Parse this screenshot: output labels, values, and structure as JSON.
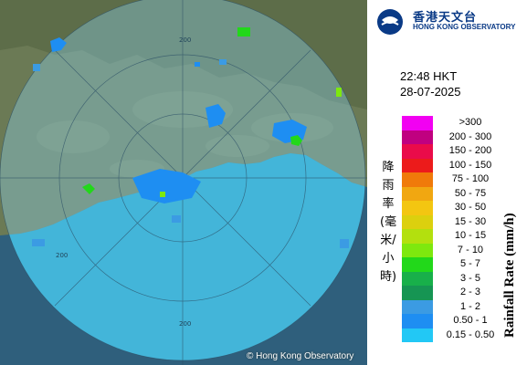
{
  "logo": {
    "name_cn": "香港天文台",
    "name_en": "HONG KONG OBSERVATORY"
  },
  "header": {
    "time": "22:48 HKT",
    "date": "28-07-2025"
  },
  "map": {
    "credit": "© Hong Kong Observatory",
    "range_ring_labels": [
      "200",
      "200",
      "200"
    ]
  },
  "legend": {
    "title_cn": "降雨率(毫米/小時)",
    "title_en": "Rainfall Rate (mm/h)",
    "classes": [
      {
        "label": ">300",
        "color": "#f200f2"
      },
      {
        "label": "200 - 300",
        "color": "#c00080"
      },
      {
        "label": "150 - 200",
        "color": "#ea0b4a"
      },
      {
        "label": "100 - 150",
        "color": "#ec1b1b"
      },
      {
        "label": "75 - 100",
        "color": "#f07a0a"
      },
      {
        "label": "50 - 75",
        "color": "#f1a711"
      },
      {
        "label": "30 - 50",
        "color": "#f3c611"
      },
      {
        "label": "15 - 30",
        "color": "#dcd00e"
      },
      {
        "label": "10 - 15",
        "color": "#b3e00e"
      },
      {
        "label": "7 - 10",
        "color": "#7ee80e"
      },
      {
        "label": "5 - 7",
        "color": "#22d81a"
      },
      {
        "label": "3 - 5",
        "color": "#18b04a"
      },
      {
        "label": "2 - 3",
        "color": "#169553"
      },
      {
        "label": "1 - 2",
        "color": "#3b9be3"
      },
      {
        "label": "0.50 - 1",
        "color": "#1e8ef2"
      },
      {
        "label": "0.15 - 0.50",
        "color": "#22c8f5"
      }
    ]
  }
}
